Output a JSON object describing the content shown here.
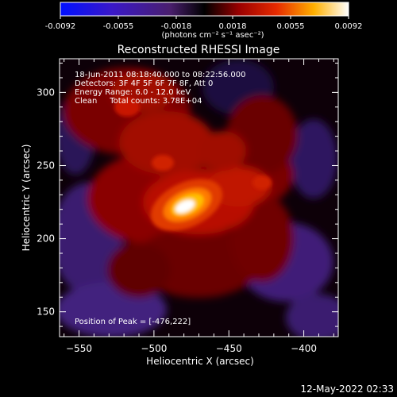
{
  "colorbar": {
    "ticks": [
      "-0.0092",
      "-0.0055",
      "-0.0018",
      "0.0018",
      "0.0055",
      "0.0092"
    ],
    "unit_label": "(photons cm⁻² s⁻¹ asec⁻²)"
  },
  "chart_data": {
    "type": "heatmap",
    "title": "Reconstructed RHESSI Image",
    "xlabel": "Heliocentric X (arcsec)",
    "ylabel": "Heliocentric Y (arcsec)",
    "xlim": [
      -563,
      -377
    ],
    "ylim": [
      133,
      323
    ],
    "x_ticks": [
      -550,
      -500,
      -450,
      -400
    ],
    "x_tick_labels": [
      "−550",
      "−500",
      "−450",
      "−400"
    ],
    "y_ticks": [
      150,
      200,
      250,
      300
    ],
    "y_tick_labels": [
      "150",
      "200",
      "250",
      "300"
    ],
    "colormap": [
      "#1020ff",
      "#3b1fb0",
      "#5a2a7a",
      "#000000",
      "#8b0000",
      "#d01000",
      "#ff6a00",
      "#ffd000",
      "#ffffff"
    ],
    "value_range": [
      -0.0092,
      0.0092
    ],
    "peak": [
      -476,
      222
    ],
    "annotations": [
      "18-Jun-2011 08:18:40.000 to 08:22:56.000",
      "Detectors: 3F 4F 5F 6F 7F 8F, Att 0",
      "Energy Range: 6.0 - 12.0 keV",
      "Clean     Total counts: 3.78E+04"
    ],
    "peak_label": "Position of Peak = [-476,222]"
  },
  "timestamp": "12-May-2022 02:33"
}
